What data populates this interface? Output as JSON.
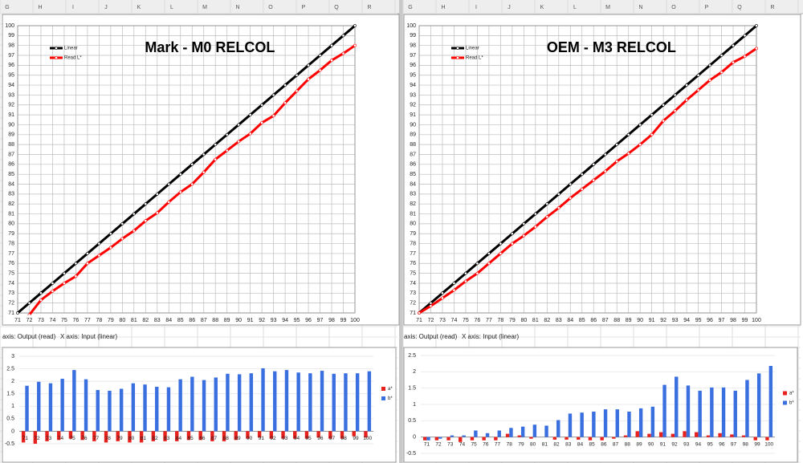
{
  "sheet": {
    "left_columns": [
      "G",
      "H",
      "I",
      "J",
      "K",
      "L",
      "M",
      "N",
      "O",
      "P",
      "Q",
      "R"
    ],
    "right_columns": [
      "G",
      "H",
      "I",
      "J",
      "K",
      "L",
      "M",
      "N",
      "O",
      "P",
      "Q",
      "R"
    ],
    "left_cells": [
      "axis: Output (read)",
      "X axis: Input (linear)"
    ],
    "right_cells": [
      "axis: Output (read)",
      "X axis: Input (linear)"
    ]
  },
  "chart_data": [
    {
      "type": "line",
      "title": "Mark - M0 RELCOL",
      "legend": "top-left",
      "x": [
        71,
        72,
        73,
        74,
        75,
        76,
        77,
        78,
        79,
        80,
        81,
        82,
        83,
        84,
        85,
        86,
        87,
        88,
        89,
        90,
        91,
        92,
        93,
        94,
        95,
        96,
        97,
        98,
        99,
        100
      ],
      "series": [
        {
          "name": "Linear",
          "color": "#000000",
          "values": [
            71,
            72,
            73,
            74,
            75,
            76,
            77,
            78,
            79,
            80,
            81,
            82,
            83,
            84,
            85,
            86,
            87,
            88,
            89,
            90,
            91,
            92,
            93,
            94,
            95,
            96,
            97,
            98,
            99,
            100
          ]
        },
        {
          "name": "Read L*",
          "color": "#ff0000",
          "values": [
            null,
            70.8,
            72.3,
            73.2,
            74,
            74.7,
            76,
            76.8,
            77.6,
            78.5,
            79.3,
            80.3,
            81.1,
            82.2,
            83.2,
            84,
            85.2,
            86.5,
            87.4,
            88.3,
            89.1,
            90.2,
            90.9,
            92.2,
            93.4,
            94.6,
            95.5,
            96.5,
            97.2,
            98
          ]
        }
      ],
      "xlim": [
        71,
        100
      ],
      "ylim": [
        71,
        100
      ],
      "xticks": [
        71,
        72,
        73,
        74,
        75,
        76,
        77,
        78,
        79,
        80,
        81,
        82,
        83,
        84,
        85,
        86,
        87,
        88,
        89,
        90,
        91,
        92,
        93,
        94,
        95,
        96,
        97,
        98,
        99,
        100
      ],
      "yticks": [
        71,
        72,
        73,
        74,
        75,
        76,
        77,
        78,
        79,
        80,
        81,
        82,
        83,
        84,
        85,
        86,
        87,
        88,
        89,
        90,
        91,
        92,
        93,
        94,
        95,
        96,
        97,
        98,
        99,
        100
      ],
      "grid": true
    },
    {
      "type": "line",
      "title": "OEM - M3 RELCOL",
      "legend": "top-left",
      "x": [
        71,
        72,
        73,
        74,
        75,
        76,
        77,
        78,
        79,
        80,
        81,
        82,
        83,
        84,
        85,
        86,
        87,
        88,
        89,
        90,
        91,
        92,
        93,
        94,
        95,
        96,
        97,
        98,
        99,
        100
      ],
      "series": [
        {
          "name": "Linear",
          "color": "#000000",
          "values": [
            71,
            72,
            73,
            74,
            75,
            76,
            77,
            78,
            79,
            80,
            81,
            82,
            83,
            84,
            85,
            86,
            87,
            88,
            89,
            90,
            91,
            92,
            93,
            94,
            95,
            96,
            97,
            98,
            99,
            100
          ]
        },
        {
          "name": "Read L*",
          "color": "#ff0000",
          "values": [
            71,
            71.7,
            72.5,
            73.3,
            74.2,
            75,
            76,
            77,
            78,
            78.8,
            79.7,
            80.7,
            81.6,
            82.6,
            83.5,
            84.4,
            85.3,
            86.3,
            87.1,
            88,
            89,
            90.4,
            91.4,
            92.5,
            93.5,
            94.5,
            95.3,
            96.3,
            96.9,
            97.7
          ]
        }
      ],
      "xlim": [
        71,
        100
      ],
      "ylim": [
        71,
        100
      ],
      "xticks": [
        71,
        72,
        73,
        74,
        75,
        76,
        77,
        78,
        79,
        80,
        81,
        82,
        83,
        84,
        85,
        86,
        87,
        88,
        89,
        90,
        91,
        92,
        93,
        94,
        95,
        96,
        97,
        98,
        99,
        100
      ],
      "yticks": [
        71,
        72,
        73,
        74,
        75,
        76,
        77,
        78,
        79,
        80,
        81,
        82,
        83,
        84,
        85,
        86,
        87,
        88,
        89,
        90,
        91,
        92,
        93,
        94,
        95,
        96,
        97,
        98,
        99,
        100
      ],
      "grid": true
    },
    {
      "type": "bar",
      "legend": "right",
      "categories": [
        71,
        72,
        73,
        74,
        75,
        76,
        77,
        78,
        79,
        80,
        81,
        82,
        83,
        84,
        85,
        86,
        87,
        88,
        89,
        90,
        91,
        92,
        93,
        94,
        95,
        96,
        97,
        98,
        99,
        100
      ],
      "series": [
        {
          "name": "a*",
          "color": "#e8211d",
          "values": [
            -0.45,
            -0.5,
            -0.4,
            -0.35,
            -0.3,
            -0.35,
            -0.4,
            -0.45,
            -0.4,
            -0.45,
            -0.45,
            -0.4,
            -0.4,
            -0.4,
            -0.35,
            -0.35,
            -0.4,
            -0.4,
            -0.35,
            -0.3,
            -0.25,
            -0.3,
            -0.3,
            -0.3,
            -0.3,
            -0.25,
            -0.3,
            -0.3,
            -0.2,
            -0.25
          ]
        },
        {
          "name": "b*",
          "color": "#3a6fe0",
          "values": [
            1.82,
            1.98,
            1.92,
            2.1,
            2.45,
            2.08,
            1.65,
            1.62,
            1.7,
            1.92,
            1.87,
            1.78,
            1.76,
            2.08,
            2.18,
            2.05,
            2.15,
            2.3,
            2.28,
            2.32,
            2.52,
            2.4,
            2.45,
            2.35,
            2.32,
            2.42,
            2.3,
            2.32,
            2.32,
            2.4
          ]
        }
      ],
      "ylim": [
        -0.5,
        3
      ],
      "yticks": [
        -0.5,
        0,
        0.5,
        1,
        1.5,
        2,
        2.5,
        3
      ],
      "grid": true
    },
    {
      "type": "bar",
      "legend": "right",
      "categories": [
        71,
        72,
        73,
        74,
        75,
        76,
        77,
        78,
        79,
        80,
        81,
        82,
        83,
        84,
        85,
        86,
        87,
        88,
        89,
        90,
        91,
        92,
        93,
        94,
        95,
        96,
        97,
        98,
        99,
        100
      ],
      "series": [
        {
          "name": "a*",
          "color": "#e8211d",
          "values": [
            -0.1,
            -0.1,
            -0.1,
            -0.15,
            -0.1,
            -0.1,
            -0.1,
            0.1,
            0.05,
            -0.05,
            0,
            -0.08,
            -0.08,
            -0.08,
            -0.1,
            -0.1,
            -0.05,
            0.05,
            0.18,
            0.1,
            0.15,
            0.1,
            0.18,
            0.15,
            0.05,
            0.12,
            0.08,
            0.05,
            -0.1,
            -0.1
          ]
        },
        {
          "name": "b*",
          "color": "#3a6fe0",
          "values": [
            -0.1,
            -0.05,
            0.05,
            0.05,
            0.2,
            0.12,
            0.2,
            0.28,
            0.32,
            0.38,
            0.35,
            0.52,
            0.72,
            0.75,
            0.78,
            0.85,
            0.85,
            0.78,
            0.88,
            0.93,
            1.6,
            1.85,
            1.58,
            1.42,
            1.52,
            1.52,
            1.42,
            1.75,
            1.95,
            2.18
          ]
        }
      ],
      "ylim": [
        -0.5,
        2.5
      ],
      "yticks": [
        -0.5,
        0,
        0.5,
        1,
        1.5,
        2,
        2.5
      ],
      "grid": true
    }
  ]
}
